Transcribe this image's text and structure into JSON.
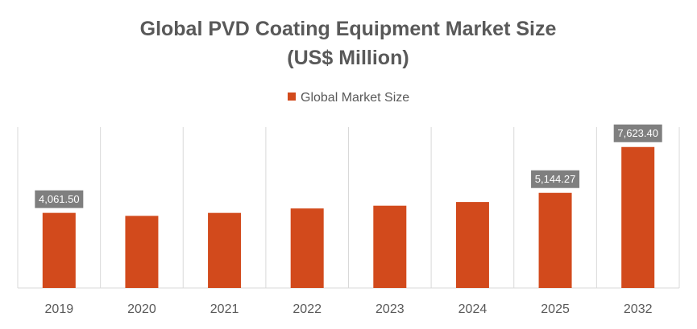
{
  "chart_data": {
    "type": "bar",
    "title": "Global PVD Coating Equipment Market Size",
    "subtitle": "(US$ Million)",
    "xlabel": "",
    "ylabel": "",
    "categories": [
      "2019",
      "2020",
      "2021",
      "2022",
      "2023",
      "2024",
      "2025",
      "2032"
    ],
    "series": [
      {
        "name": "Global Market Size",
        "values": [
          4061.5,
          3900,
          4060,
          4300,
          4450,
          4650,
          5144.27,
          7623.4
        ]
      }
    ],
    "data_labels": [
      "4,061.50",
      "",
      "",
      "",
      "",
      "",
      "5,144.27",
      "7,623.40"
    ],
    "ylim": [
      0,
      8700
    ],
    "legend_position": "top-center",
    "grid": "vertical category separators",
    "colors": {
      "bar": "#D24A1C",
      "label_box": "#7F7F7F",
      "grid": "#D9D9D9",
      "text": "#595959"
    }
  }
}
